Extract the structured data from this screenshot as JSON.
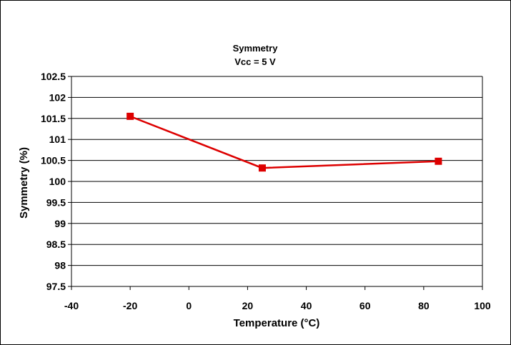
{
  "chart_data": {
    "type": "line",
    "title": "Symmetry",
    "subtitle": "Vcc = 5 V",
    "xlabel": "Temperature (°C)",
    "ylabel": "Symmetry (%)",
    "xlim": [
      -40,
      100
    ],
    "ylim": [
      97.5,
      102.5
    ],
    "x_ticks": [
      -40,
      -20,
      0,
      20,
      40,
      60,
      80,
      100
    ],
    "y_ticks": [
      97.5,
      98,
      98.5,
      99,
      99.5,
      100,
      100.5,
      101,
      101.5,
      102,
      102.5
    ],
    "grid": "horizontal",
    "legend": "none",
    "series": [
      {
        "x": [
          -20,
          25,
          85
        ],
        "y": [
          101.55,
          100.32,
          100.48
        ],
        "color": "#dd0000",
        "marker": "square"
      }
    ]
  }
}
